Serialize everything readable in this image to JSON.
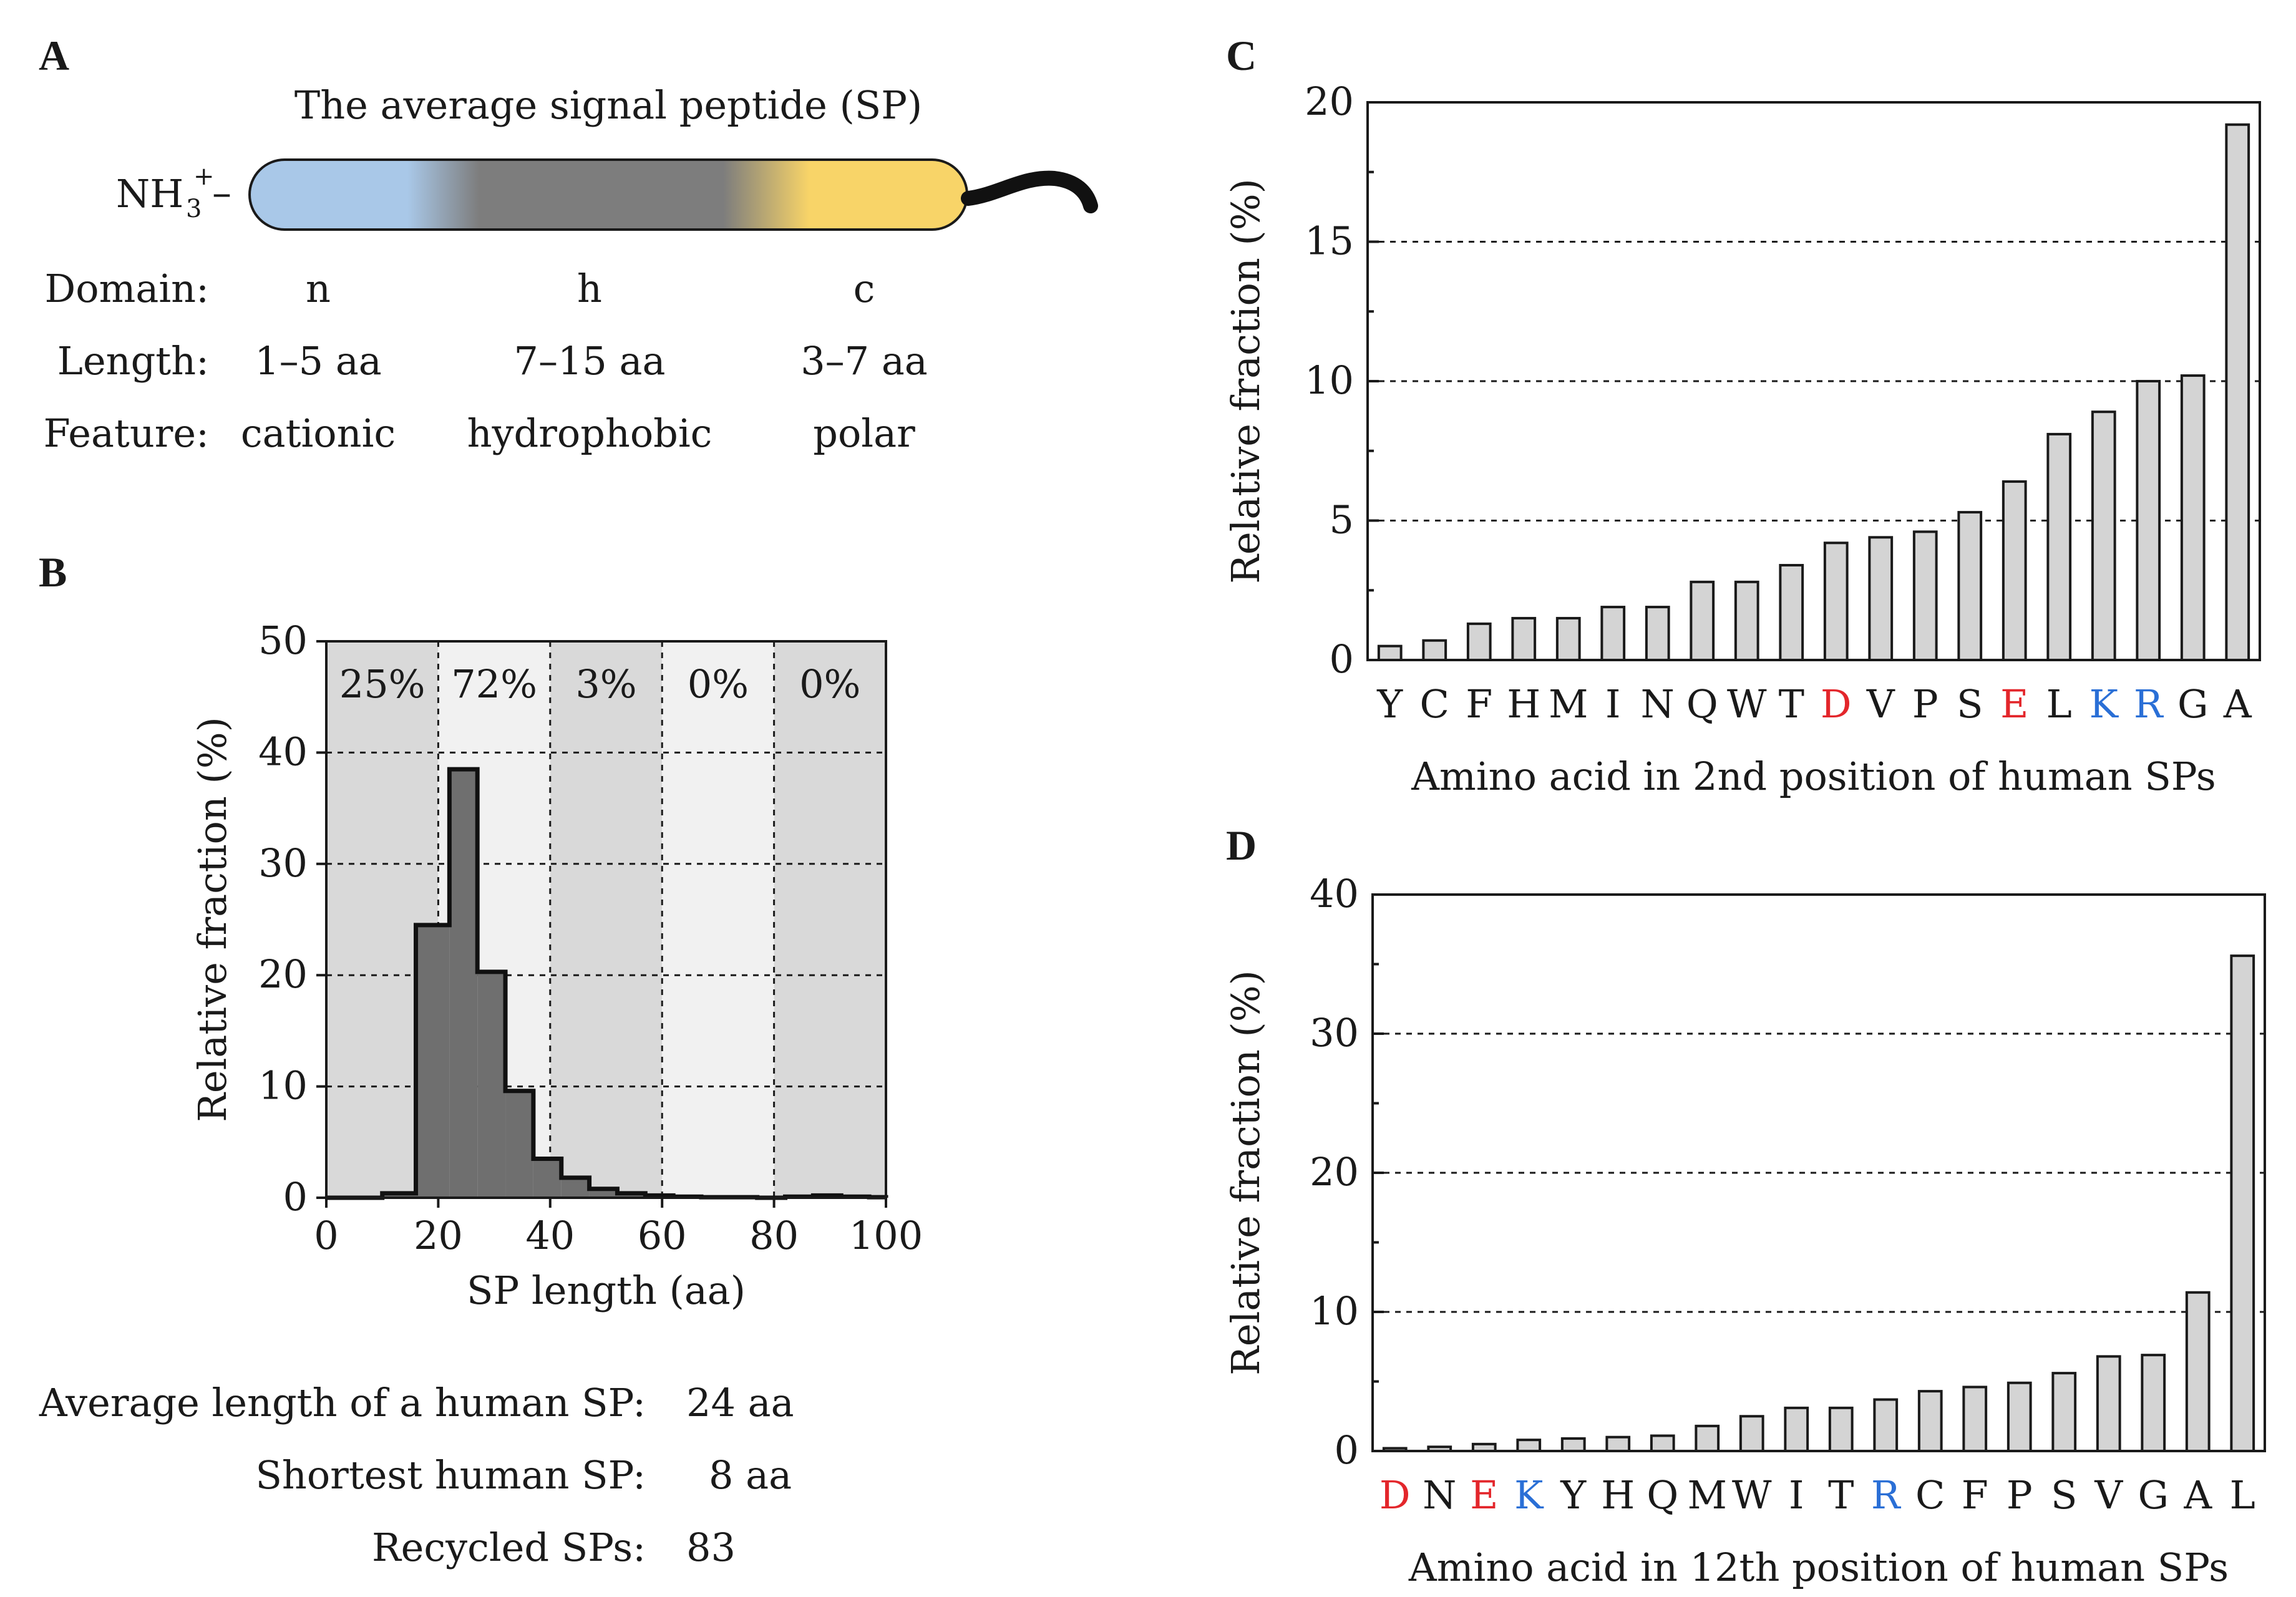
{
  "panel_labels": {
    "a": "A",
    "b": "B",
    "c": "C",
    "d": "D"
  },
  "panel_a": {
    "title": "The average signal peptide (SP)",
    "terminus": "NH3+–",
    "terminus_base": "NH",
    "terminus_sub": "3",
    "terminus_sup": "+",
    "terminus_dash": "–",
    "colors": {
      "n": "#a9c8e8",
      "h": "#7d7d7d",
      "c": "#f8d468"
    },
    "row_labels": {
      "domain": "Domain:",
      "length": "Length:",
      "feature": "Feature:"
    },
    "domains": [
      {
        "name": "n",
        "length": "1–5 aa",
        "feature": "cationic"
      },
      {
        "name": "h",
        "length": "7–15 aa",
        "feature": "hydrophobic"
      },
      {
        "name": "c",
        "length": "3–7 aa",
        "feature": "polar"
      }
    ]
  },
  "stats": [
    {
      "label": "Average length of a human SP:",
      "value": "24 aa"
    },
    {
      "label": "Shortest human SP:",
      "value": "8 aa"
    },
    {
      "label": "Recycled SPs:",
      "value": "83"
    }
  ],
  "colors": {
    "bar_fill": "#d4d4d4",
    "hist_fill": "#6f6f6f",
    "band_dark": "#d9d9d9",
    "band_light": "#f1f1f1",
    "acidic": "#e3262b",
    "basic": "#2a6fd6",
    "default": "#1a1a1a"
  },
  "chart_data": [
    {
      "id": "B",
      "type": "histogram",
      "xlabel": "SP length (aa)",
      "ylabel": "Relative fraction (%)",
      "xlim": [
        0,
        100
      ],
      "ylim": [
        0,
        50
      ],
      "xticks": [
        0,
        20,
        40,
        60,
        80,
        100
      ],
      "yticks": [
        0,
        10,
        20,
        30,
        40,
        50
      ],
      "grid_y": [
        10,
        20,
        30,
        40
      ],
      "bin_edges": [
        0,
        5,
        10,
        16,
        22,
        27,
        32,
        37,
        42,
        47,
        52,
        57,
        62,
        67,
        72,
        77,
        82,
        87,
        92,
        97,
        100
      ],
      "values": [
        0,
        0,
        0.4,
        24.5,
        38.5,
        20.3,
        9.6,
        3.5,
        1.8,
        0.8,
        0.4,
        0.2,
        0.1,
        0.05,
        0.05,
        0,
        0.1,
        0.2,
        0.1,
        0.05
      ],
      "bands": [
        {
          "from": 0,
          "to": 20,
          "label": "25%"
        },
        {
          "from": 20,
          "to": 40,
          "label": "72%"
        },
        {
          "from": 40,
          "to": 60,
          "label": "3%"
        },
        {
          "from": 60,
          "to": 80,
          "label": "0%"
        },
        {
          "from": 80,
          "to": 100,
          "label": "0%"
        }
      ]
    },
    {
      "id": "C",
      "type": "bar",
      "xlabel": "Amino acid in 2nd position of human SPs",
      "ylabel": "Relative fraction (%)",
      "ylim": [
        0,
        20
      ],
      "yticks": [
        0,
        5,
        10,
        15,
        20
      ],
      "grid_y": [
        5,
        10,
        15
      ],
      "categories": [
        "Y",
        "C",
        "F",
        "H",
        "M",
        "I",
        "N",
        "Q",
        "W",
        "T",
        "D",
        "V",
        "P",
        "S",
        "E",
        "L",
        "K",
        "R",
        "G",
        "A"
      ],
      "values": [
        0.5,
        0.7,
        1.3,
        1.5,
        1.5,
        1.9,
        1.9,
        2.8,
        2.8,
        3.4,
        4.2,
        4.4,
        4.6,
        5.3,
        6.4,
        8.1,
        8.9,
        10.0,
        10.2,
        19.2
      ]
    },
    {
      "id": "D",
      "type": "bar",
      "xlabel": "Amino acid in 12th position of human SPs",
      "ylabel": "Relative fraction (%)",
      "ylim": [
        0,
        40
      ],
      "yticks": [
        0,
        10,
        20,
        30,
        40
      ],
      "grid_y": [
        10,
        20,
        30
      ],
      "categories": [
        "D",
        "N",
        "E",
        "K",
        "Y",
        "H",
        "Q",
        "M",
        "W",
        "I",
        "T",
        "R",
        "C",
        "F",
        "P",
        "S",
        "V",
        "G",
        "A",
        "L"
      ],
      "values": [
        0.2,
        0.3,
        0.5,
        0.8,
        0.9,
        1.0,
        1.1,
        1.8,
        2.5,
        3.1,
        3.1,
        3.7,
        4.3,
        4.6,
        4.9,
        5.6,
        6.8,
        6.9,
        11.4,
        35.6
      ]
    }
  ]
}
